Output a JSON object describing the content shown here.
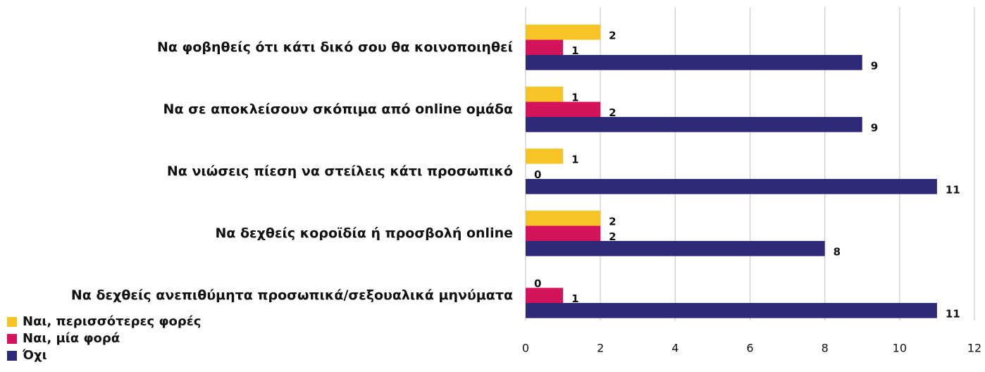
{
  "chart_data": {
    "type": "bar",
    "orientation": "horizontal",
    "categories": [
      "Να φοβηθείς ότι κάτι δικό σου θα κοινοποιηθεί",
      "Να σε αποκλείσουν σκόπιμα από online ομάδα",
      "Να νιώσεις πίεση να στείλεις κάτι προσωπικό",
      "Να δεχθείς κοροϊδία ή προσβολή online",
      "Να δεχθείς ανεπιθύμητα προσωπικά/σεξουαλικά μηνύματα"
    ],
    "series": [
      {
        "name": "Ναι, περισσότερες φορές",
        "color": "#f7c325",
        "values": [
          2,
          1,
          1,
          2,
          0
        ]
      },
      {
        "name": "Ναι, μία φορά",
        "color": "#d4145a",
        "values": [
          1,
          2,
          0,
          2,
          1
        ]
      },
      {
        "name": "Όχι",
        "color": "#2e2a7a",
        "values": [
          9,
          9,
          11,
          8,
          11
        ]
      }
    ],
    "xlim": [
      0,
      12
    ],
    "xticks": [
      0,
      2,
      4,
      6,
      8,
      10,
      12
    ],
    "grid": true,
    "legend": "bottom-left"
  }
}
